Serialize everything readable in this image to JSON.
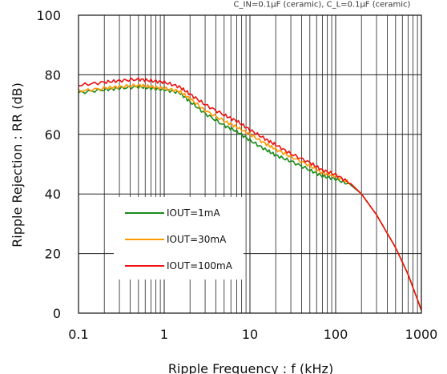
{
  "conditions_text": "C_IN=0.1μF (ceramic), C_L=0.1μF (ceramic)",
  "chart_data": {
    "type": "line",
    "xlabel": "Ripple Frequency : f (kHz)",
    "ylabel": "Ripple Rejection : RR (dB)",
    "x_scale": "log",
    "xlim": [
      0.1,
      1000
    ],
    "ylim": [
      0,
      100
    ],
    "grid": true,
    "legend_position": "lower-left",
    "x_ticks": [
      {
        "value": 0.1,
        "label": "0.1"
      },
      {
        "value": 1,
        "label": "1"
      },
      {
        "value": 10,
        "label": "10"
      },
      {
        "value": 100,
        "label": "100"
      },
      {
        "value": 1000,
        "label": "1000"
      }
    ],
    "y_ticks": [
      {
        "value": 0,
        "label": "0"
      },
      {
        "value": 20,
        "label": "20"
      },
      {
        "value": 40,
        "label": "40"
      },
      {
        "value": 60,
        "label": "60"
      },
      {
        "value": 80,
        "label": "80"
      },
      {
        "value": 100,
        "label": "100"
      }
    ],
    "series": [
      {
        "name": "IOUT=1mA",
        "color": "#1a8a1a",
        "x": [
          0.1,
          0.2,
          0.3,
          0.5,
          0.7,
          1,
          1.5,
          2,
          3,
          5,
          7,
          10,
          15,
          20,
          30,
          50,
          70,
          100,
          150,
          200,
          300,
          500,
          700,
          1000
        ],
        "y": [
          74,
          75,
          75.5,
          76,
          75.5,
          75,
          74,
          71,
          67,
          63,
          61,
          58,
          55,
          53,
          51,
          48,
          46,
          45,
          43,
          40,
          33,
          22,
          13,
          1
        ]
      },
      {
        "name": "IOUT=30mA",
        "color": "#ff9900",
        "x": [
          0.1,
          0.2,
          0.3,
          0.5,
          0.7,
          1,
          1.5,
          2,
          3,
          5,
          7,
          10,
          15,
          20,
          30,
          50,
          70,
          100,
          150,
          200,
          300,
          500,
          700,
          1000
        ],
        "y": [
          74.5,
          75.5,
          76,
          76.5,
          76,
          75.5,
          74.5,
          72,
          68,
          64.5,
          62.5,
          60,
          57,
          55,
          52.5,
          49.5,
          47,
          46,
          43.5,
          40,
          33,
          22,
          13,
          1
        ]
      },
      {
        "name": "IOUT=100mA",
        "color": "#ee1111",
        "x": [
          0.1,
          0.2,
          0.3,
          0.5,
          0.7,
          1,
          1.5,
          2,
          3,
          5,
          7,
          10,
          15,
          20,
          30,
          50,
          70,
          100,
          150,
          200,
          300,
          500,
          700,
          1000
        ],
        "y": [
          76.5,
          77.5,
          78,
          78.5,
          78,
          77.5,
          76,
          73.5,
          70,
          66.5,
          64.5,
          61.5,
          58.5,
          56.5,
          53.5,
          50.5,
          48,
          46.5,
          43.5,
          40,
          33,
          22,
          13,
          1
        ]
      }
    ]
  }
}
